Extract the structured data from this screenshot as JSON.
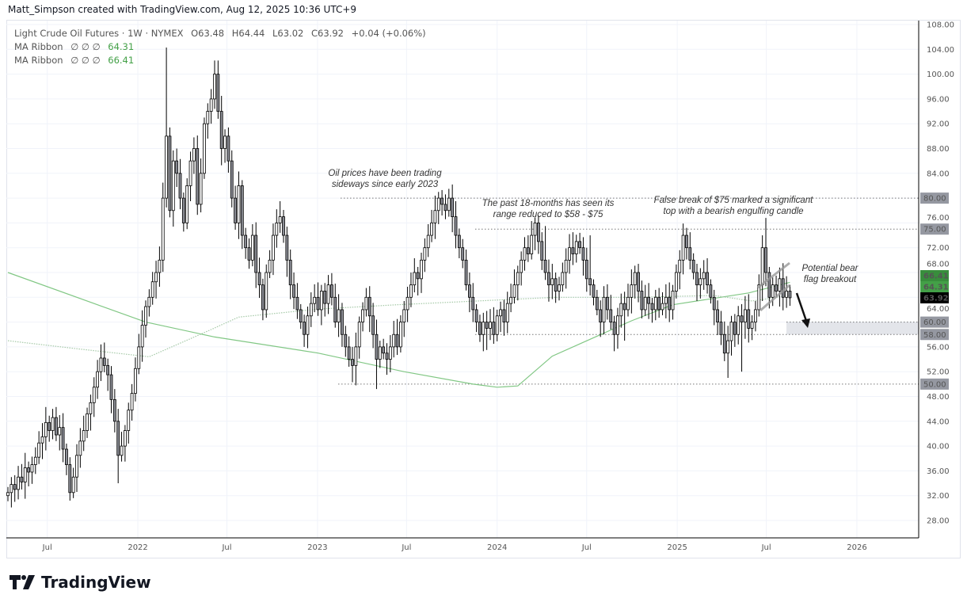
{
  "credit": "Matt_Simpson created with TradingView.com, Aug 12, 2025 10:36 UTC+9",
  "legend": {
    "symbol": "Light Crude Oil Futures · 1W · NYMEX",
    "open": "O63.48",
    "high": "H64.44",
    "low": "L63.02",
    "close": "C63.92",
    "change": "+0.04 (+0.06%)",
    "ma1": {
      "label": "MA Ribbon",
      "params": "∅  ∅  ∅",
      "value": "64.31"
    },
    "ma2": {
      "label": "MA Ribbon",
      "params": "∅  ∅  ∅",
      "value": "66.41"
    }
  },
  "logo": "TradingView",
  "chart_data": {
    "type": "candlestick",
    "interval": "1W",
    "ylim": [
      26,
      108
    ],
    "y_ticks": [
      108,
      104,
      100,
      96,
      92,
      88,
      84,
      80,
      76,
      72,
      68,
      64,
      60,
      56,
      52,
      48,
      44,
      40,
      36,
      32,
      28
    ],
    "x_ticks": [
      {
        "label": "Jul",
        "date": "2021-07-01"
      },
      {
        "label": "2022",
        "date": "2022-01-01"
      },
      {
        "label": "Jul",
        "date": "2022-07-01"
      },
      {
        "label": "2023",
        "date": "2023-01-01"
      },
      {
        "label": "Jul",
        "date": "2023-07-01"
      },
      {
        "label": "2024",
        "date": "2024-01-01"
      },
      {
        "label": "Jul",
        "date": "2024-07-01"
      },
      {
        "label": "2025",
        "date": "2025-01-01"
      },
      {
        "label": "Jul",
        "date": "2025-07-01"
      },
      {
        "label": "2026",
        "date": "2026-01-01"
      }
    ],
    "closes": [
      32.5,
      33.8,
      33.0,
      35.0,
      34.2,
      36.5,
      35.8,
      37.0,
      38.2,
      40.5,
      41.5,
      43.8,
      42.5,
      44.6,
      41.8,
      43.0,
      39.5,
      37.0,
      32.5,
      35.0,
      38.5,
      40.8,
      42.5,
      45.2,
      47.0,
      49.5,
      52.0,
      54.2,
      53.0,
      51.5,
      47.5,
      44.0,
      38.5,
      40.0,
      42.5,
      45.8,
      48.5,
      52.5,
      56.0,
      59.5,
      62.5,
      64.0,
      66.5,
      68.0,
      70.0,
      80.0,
      90.0,
      78.0,
      86.0,
      84.0,
      80,
      76,
      82,
      86,
      88,
      79,
      84,
      92,
      94,
      96,
      100,
      94,
      88,
      90,
      86,
      80,
      76,
      82,
      74,
      72,
      70,
      74,
      68,
      66,
      62,
      68,
      70,
      74,
      76,
      77,
      74,
      70,
      66,
      64,
      62,
      60,
      58,
      61,
      63,
      64,
      62,
      65,
      63,
      66,
      64,
      60,
      62,
      58,
      56,
      54,
      53,
      56,
      60,
      62,
      64,
      61,
      58,
      54,
      56,
      55,
      54,
      56,
      58,
      56,
      60,
      62,
      64,
      66,
      68,
      67,
      70,
      72,
      74,
      76,
      78,
      80,
      79,
      78,
      80,
      77,
      74,
      72,
      70,
      66,
      64,
      62,
      60,
      58,
      60,
      59,
      60,
      58,
      61,
      62,
      60,
      63,
      64,
      66,
      68,
      70,
      72,
      71,
      74,
      76,
      73,
      70,
      68,
      66,
      67,
      65,
      66,
      68,
      70,
      72,
      71,
      73,
      72,
      70,
      67,
      66,
      64,
      62,
      60,
      64,
      62,
      60,
      58,
      61,
      63,
      62,
      64,
      66,
      68,
      65,
      62,
      64,
      63,
      62,
      64,
      62,
      63,
      64,
      62,
      65,
      68,
      70,
      74,
      72,
      70,
      68,
      66,
      67,
      68,
      66,
      64,
      62,
      60,
      58,
      55,
      57,
      60,
      58,
      61,
      60,
      62,
      59,
      60,
      62,
      66,
      72,
      68,
      64,
      66,
      65,
      67,
      64,
      65,
      63.92
    ],
    "notable_highs": [
      [
        46,
        104.3
      ],
      [
        60,
        102.2
      ],
      [
        128,
        81.5
      ],
      [
        156,
        75.5
      ],
      [
        169,
        74
      ],
      [
        197,
        75.2
      ],
      [
        220,
        76.8
      ],
      [
        225,
        69.5
      ]
    ],
    "notable_lows": [
      [
        18,
        31.2
      ],
      [
        32,
        34
      ],
      [
        86,
        56
      ],
      [
        101,
        49.8
      ],
      [
        107,
        49.2
      ],
      [
        139,
        55.5
      ],
      [
        179,
        57
      ],
      [
        209,
        51
      ],
      [
        213,
        52
      ]
    ],
    "moving_averages": [
      {
        "name": "MA Ribbon",
        "style": "solid",
        "color": "#81c784",
        "last": 66.41,
        "path": [
          [
            0,
            68
          ],
          [
            40,
            60
          ],
          [
            60,
            57.6
          ],
          [
            90,
            55
          ],
          [
            115,
            52
          ],
          [
            135,
            50
          ],
          [
            142,
            49.5
          ],
          [
            148,
            49.7
          ],
          [
            158,
            54.5
          ],
          [
            181,
            60.2
          ],
          [
            193,
            62.8
          ],
          [
            215,
            64.7
          ],
          [
            227,
            66.41
          ]
        ]
      },
      {
        "name": "MA Ribbon",
        "style": "dotted",
        "color": "#a5c9a7",
        "last": 64.31,
        "path": [
          [
            0,
            57
          ],
          [
            20,
            55.7
          ],
          [
            41,
            54.4
          ],
          [
            57,
            58.3
          ],
          [
            67,
            60.8
          ],
          [
            90,
            62.1
          ],
          [
            113,
            62.8
          ],
          [
            136,
            63.4
          ],
          [
            159,
            64
          ],
          [
            182,
            64
          ],
          [
            205,
            64.3
          ],
          [
            216,
            63.4
          ],
          [
            227,
            64.31
          ]
        ]
      }
    ],
    "levels": [
      {
        "price": 80,
        "label": "80.00"
      },
      {
        "price": 75,
        "label": "75.00"
      },
      {
        "price": 60,
        "label": "60.00"
      },
      {
        "price": 58,
        "label": "58.00"
      },
      {
        "price": 50,
        "label": "50.00"
      }
    ],
    "zone": {
      "from": 58,
      "to": 60
    },
    "price_labels": [
      {
        "label": "66.41",
        "color": "#388e3c"
      },
      {
        "label": "64.31",
        "color": "#43a047"
      },
      {
        "label": "63.92",
        "color": "#000000"
      }
    ],
    "annotations": [
      {
        "lines": [
          "Oil prices have been trading",
          "sideways since early 2023"
        ]
      },
      {
        "lines": [
          "The past 18-months has seen its",
          "range reduced to $58 - $75"
        ]
      },
      {
        "lines": [
          "False break of $75 marked a significant",
          "top with a bearish engulfing candle"
        ]
      },
      {
        "lines": [
          "Potential bear",
          "flag breakout"
        ]
      }
    ],
    "colors": {
      "up_fill": "#ffffff",
      "down_fill": "#8a8c94",
      "outline": "#000000",
      "grid": "#f0f3fa"
    }
  }
}
